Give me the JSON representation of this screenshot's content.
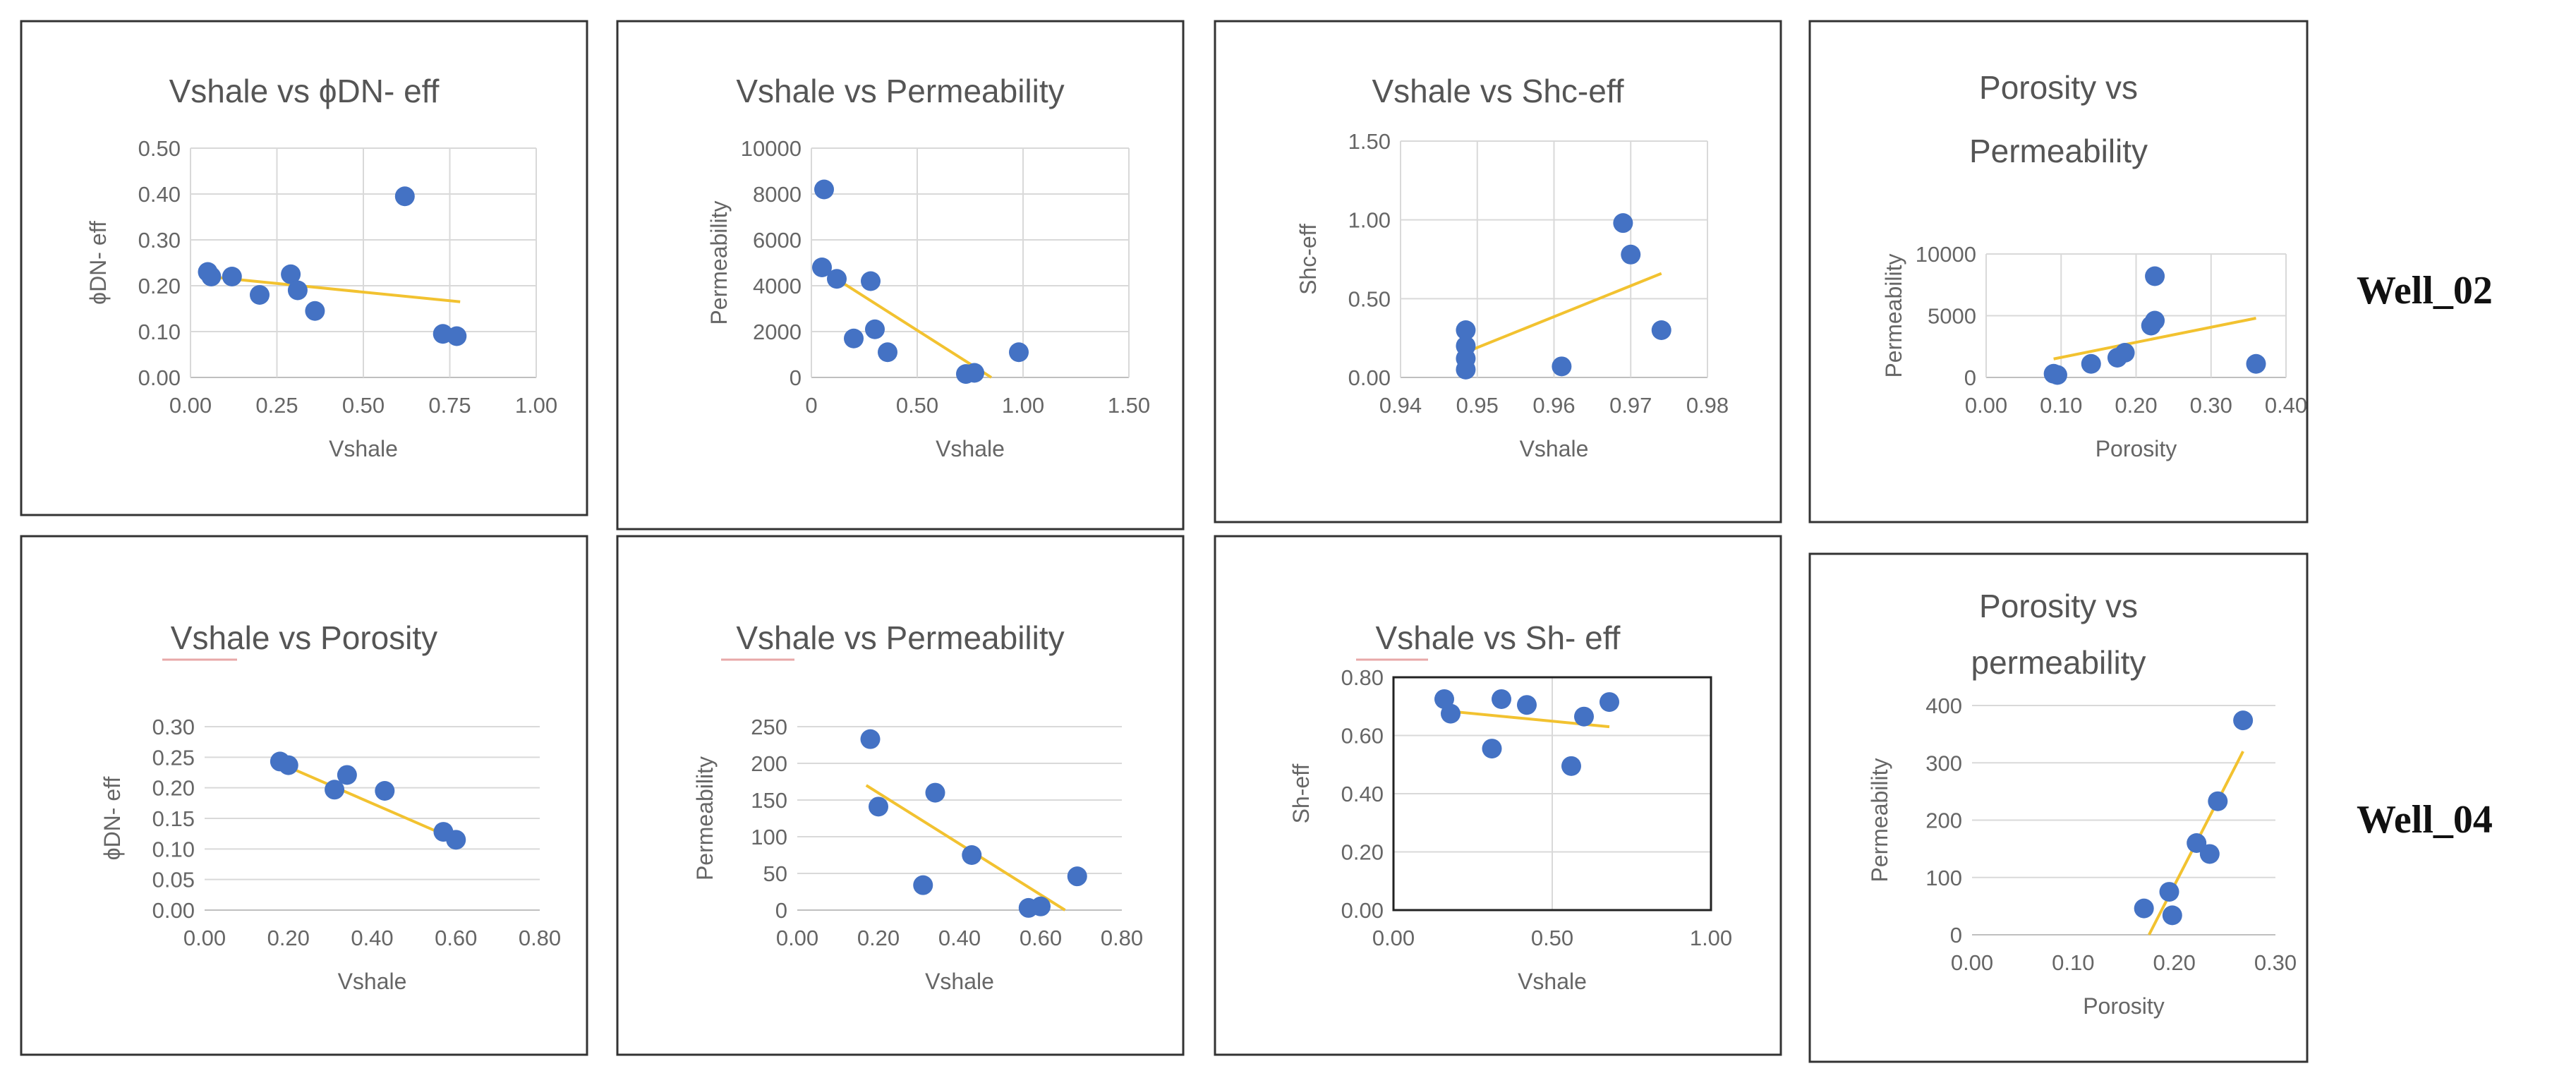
{
  "well_labels": [
    "Well_02",
    "Well_04"
  ],
  "chart_data": [
    {
      "type": "scatter",
      "well": "Well_02",
      "title": [
        "Vshale vs ϕDN- eff"
      ],
      "xlabel": "Vshale",
      "ylabel": "ϕDN- eff",
      "xlim": [
        0,
        1
      ],
      "ylim": [
        0,
        0.5
      ],
      "xticks": [
        0,
        0.25,
        0.5,
        0.75,
        1.0
      ],
      "xtick_labels": [
        "0.00",
        "0.25",
        "0.50",
        "0.75",
        "1.00"
      ],
      "yticks": [
        0,
        0.1,
        0.2,
        0.3,
        0.4,
        0.5
      ],
      "ytick_labels": [
        "0.00",
        "0.10",
        "0.20",
        "0.30",
        "0.40",
        "0.50"
      ],
      "points": [
        [
          0.05,
          0.23
        ],
        [
          0.06,
          0.22
        ],
        [
          0.12,
          0.22
        ],
        [
          0.2,
          0.18
        ],
        [
          0.29,
          0.225
        ],
        [
          0.31,
          0.19
        ],
        [
          0.36,
          0.145
        ],
        [
          0.62,
          0.395
        ],
        [
          0.73,
          0.095
        ],
        [
          0.77,
          0.09
        ]
      ],
      "trendline": [
        [
          0.05,
          0.22
        ],
        [
          0.78,
          0.165
        ]
      ]
    },
    {
      "type": "scatter",
      "well": "Well_02",
      "title": [
        "Vshale vs Permeability"
      ],
      "xlabel": "Vshale",
      "ylabel": "Permeability",
      "xlim": [
        0,
        1.5
      ],
      "ylim": [
        0,
        10000
      ],
      "xticks": [
        0,
        0.5,
        1.0,
        1.5
      ],
      "xtick_labels": [
        "0",
        "0.50",
        "1.00",
        "1.50"
      ],
      "yticks": [
        0,
        2000,
        4000,
        6000,
        8000,
        10000
      ],
      "ytick_labels": [
        "0",
        "2000",
        "4000",
        "6000",
        "8000",
        "10000"
      ],
      "points": [
        [
          0.06,
          8200
        ],
        [
          0.05,
          4800
        ],
        [
          0.12,
          4300
        ],
        [
          0.2,
          1700
        ],
        [
          0.28,
          4200
        ],
        [
          0.3,
          2100
        ],
        [
          0.36,
          1100
        ],
        [
          0.73,
          150
        ],
        [
          0.77,
          200
        ],
        [
          0.98,
          1100
        ]
      ],
      "trendline": [
        [
          0.05,
          4700
        ],
        [
          0.85,
          0
        ]
      ]
    },
    {
      "type": "scatter",
      "well": "Well_02",
      "title": [
        "Vshale vs Shc-eff"
      ],
      "xlabel": "Vshale",
      "ylabel": "Shc-eff",
      "xlim": [
        0.94,
        0.98
      ],
      "ylim": [
        0,
        1.5
      ],
      "xticks": [
        0.94,
        0.95,
        0.96,
        0.97,
        0.98
      ],
      "xtick_labels": [
        "0.94",
        "0.95",
        "0.96",
        "0.97",
        "0.98"
      ],
      "yticks": [
        0,
        0.5,
        1.0,
        1.5
      ],
      "ytick_labels": [
        "0.00",
        "0.50",
        "1.00",
        "1.50"
      ],
      "points": [
        [
          0.9485,
          0.3
        ],
        [
          0.9485,
          0.2
        ],
        [
          0.9485,
          0.12
        ],
        [
          0.9485,
          0.05
        ],
        [
          0.961,
          0.07
        ],
        [
          0.969,
          0.98
        ],
        [
          0.97,
          0.78
        ],
        [
          0.974,
          0.3
        ]
      ],
      "trendline": [
        [
          0.9485,
          0.16
        ],
        [
          0.974,
          0.66
        ]
      ]
    },
    {
      "type": "scatter",
      "well": "Well_02",
      "title": [
        "Porosity vs",
        "Permeability"
      ],
      "xlabel": "Porosity",
      "ylabel": "Permeability",
      "xlim": [
        0,
        0.4
      ],
      "ylim": [
        0,
        10000
      ],
      "xticks": [
        0,
        0.1,
        0.2,
        0.3,
        0.4
      ],
      "xtick_labels": [
        "0.00",
        "0.10",
        "0.20",
        "0.30",
        "0.40"
      ],
      "yticks": [
        0,
        5000,
        10000
      ],
      "ytick_labels": [
        "0",
        "5000",
        "10000"
      ],
      "points": [
        [
          0.09,
          300
        ],
        [
          0.095,
          200
        ],
        [
          0.14,
          1100
        ],
        [
          0.175,
          1600
        ],
        [
          0.185,
          2000
        ],
        [
          0.22,
          4200
        ],
        [
          0.225,
          4600
        ],
        [
          0.225,
          8200
        ],
        [
          0.36,
          1100
        ]
      ],
      "trendline": [
        [
          0.09,
          1500
        ],
        [
          0.36,
          4800
        ]
      ]
    },
    {
      "type": "scatter",
      "well": "Well_04",
      "title": [
        "Vshale vs Porosity"
      ],
      "xlabel": "Vshale",
      "ylabel": "ϕDN- eff",
      "xlim": [
        0,
        0.8
      ],
      "ylim": [
        0,
        0.3
      ],
      "xticks": [
        0,
        0.2,
        0.4,
        0.6,
        0.8
      ],
      "xtick_labels": [
        "0.00",
        "0.20",
        "0.40",
        "0.60",
        "0.80"
      ],
      "yticks": [
        0,
        0.05,
        0.1,
        0.15,
        0.2,
        0.25,
        0.3
      ],
      "ytick_labels": [
        "0.00",
        "0.05",
        "0.10",
        "0.15",
        "0.20",
        "0.25",
        "0.30"
      ],
      "points": [
        [
          0.18,
          0.243
        ],
        [
          0.2,
          0.237
        ],
        [
          0.31,
          0.197
        ],
        [
          0.34,
          0.221
        ],
        [
          0.43,
          0.195
        ],
        [
          0.57,
          0.128
        ],
        [
          0.6,
          0.115
        ]
      ],
      "trendline": [
        [
          0.17,
          0.243
        ],
        [
          0.6,
          0.115
        ]
      ]
    },
    {
      "type": "scatter",
      "well": "Well_04",
      "title": [
        "Vshale vs Permeability"
      ],
      "xlabel": "Vshale",
      "ylabel": "Permeability",
      "xlim": [
        0,
        0.8
      ],
      "ylim": [
        0,
        250
      ],
      "xticks": [
        0,
        0.2,
        0.4,
        0.6,
        0.8
      ],
      "xtick_labels": [
        "0.00",
        "0.20",
        "0.40",
        "0.60",
        "0.80"
      ],
      "yticks": [
        0,
        50,
        100,
        150,
        200,
        250
      ],
      "ytick_labels": [
        "0",
        "50",
        "100",
        "150",
        "200",
        "250"
      ],
      "points": [
        [
          0.18,
          233
        ],
        [
          0.2,
          141
        ],
        [
          0.31,
          34
        ],
        [
          0.34,
          160
        ],
        [
          0.43,
          75
        ],
        [
          0.57,
          3
        ],
        [
          0.6,
          5
        ],
        [
          0.69,
          46
        ]
      ],
      "trendline": [
        [
          0.17,
          170
        ],
        [
          0.66,
          0
        ]
      ]
    },
    {
      "type": "scatter",
      "well": "Well_04",
      "title": [
        "Vshale vs Sh- eff"
      ],
      "xlabel": "Vshale",
      "ylabel": "Sh-eff",
      "xlim": [
        0,
        1.0
      ],
      "ylim": [
        0,
        0.8
      ],
      "xticks": [
        0,
        0.5,
        1.0
      ],
      "xtick_labels": [
        "0.00",
        "0.50",
        "1.00"
      ],
      "yticks": [
        0,
        0.2,
        0.4,
        0.6,
        0.8
      ],
      "ytick_labels": [
        "0.00",
        "0.20",
        "0.40",
        "0.60",
        "0.80"
      ],
      "points": [
        [
          0.16,
          0.725
        ],
        [
          0.18,
          0.675
        ],
        [
          0.31,
          0.555
        ],
        [
          0.34,
          0.725
        ],
        [
          0.42,
          0.705
        ],
        [
          0.56,
          0.495
        ],
        [
          0.6,
          0.665
        ],
        [
          0.68,
          0.715
        ]
      ],
      "trendline": [
        [
          0.16,
          0.685
        ],
        [
          0.68,
          0.63
        ]
      ]
    },
    {
      "type": "scatter",
      "well": "Well_04",
      "title": [
        "Porosity vs",
        "permeability"
      ],
      "xlabel": "Porosity",
      "ylabel": "Permeability",
      "xlim": [
        0,
        0.3
      ],
      "ylim": [
        0,
        400
      ],
      "xticks": [
        0,
        0.1,
        0.2,
        0.3
      ],
      "xtick_labels": [
        "0.00",
        "0.10",
        "0.20",
        "0.30"
      ],
      "yticks": [
        0,
        100,
        200,
        300,
        400
      ],
      "ytick_labels": [
        "0",
        "100",
        "200",
        "300",
        "400"
      ],
      "points": [
        [
          0.17,
          46
        ],
        [
          0.195,
          75
        ],
        [
          0.198,
          34
        ],
        [
          0.222,
          160
        ],
        [
          0.235,
          141
        ],
        [
          0.243,
          233
        ],
        [
          0.268,
          374
        ]
      ],
      "trendline": [
        [
          0.175,
          0
        ],
        [
          0.268,
          320
        ]
      ]
    }
  ]
}
